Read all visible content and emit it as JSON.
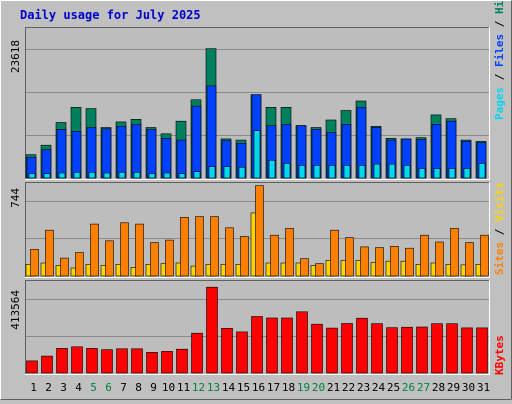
{
  "title": "Daily usage for July 2025",
  "colors": {
    "background": "#C0C0C0",
    "plot_bg": "#BDBDBD",
    "grid": "#8A8A8A",
    "title": "#0000CC",
    "hits": "#00805C",
    "files": "#0040FF",
    "pages": "#00D8F0",
    "visits": "#FFD400",
    "sites": "#FF8000",
    "kbytes": "#FF0000",
    "weekend_label": "#008040",
    "day_label": "#000000"
  },
  "chart_data": [
    {
      "type": "bar",
      "panel": "top",
      "ymax_label": "23618",
      "ylim": [
        0,
        23618
      ],
      "legend": [
        "Pages",
        "Files",
        "Hits"
      ],
      "legend_separator": " / ",
      "categories": [
        "1",
        "2",
        "3",
        "4",
        "5",
        "6",
        "7",
        "8",
        "9",
        "10",
        "11",
        "12",
        "13",
        "14",
        "15",
        "16",
        "17",
        "18",
        "19",
        "20",
        "21",
        "22",
        "23",
        "24",
        "25",
        "26",
        "27",
        "28",
        "29",
        "30",
        "31"
      ],
      "weekend_days": [
        "5",
        "6",
        "12",
        "13",
        "19",
        "20",
        "26",
        "27"
      ],
      "series": [
        {
          "name": "Hits",
          "color_key": "hits",
          "values": [
            3700,
            5200,
            8800,
            11200,
            11000,
            8000,
            8900,
            9300,
            8000,
            7000,
            9000,
            12400,
            20500,
            6200,
            6000,
            13200,
            11200,
            11200,
            8300,
            8000,
            9200,
            10700,
            12200,
            8200,
            6300,
            6200,
            6400,
            10000,
            9400,
            6000,
            5800
          ]
        },
        {
          "name": "Files",
          "color_key": "files",
          "values": [
            3300,
            4500,
            7700,
            7400,
            8000,
            7800,
            8200,
            8500,
            7700,
            6300,
            6000,
            11400,
            14600,
            5900,
            5500,
            13200,
            8300,
            8500,
            8300,
            7700,
            7200,
            8500,
            11200,
            8000,
            6000,
            6200,
            6100,
            8500,
            9000,
            5800,
            5600
          ]
        },
        {
          "name": "Pages",
          "color_key": "pages",
          "values": [
            700,
            700,
            800,
            900,
            900,
            800,
            900,
            900,
            700,
            800,
            700,
            1000,
            1800,
            1800,
            1700,
            7500,
            2800,
            2300,
            2000,
            2000,
            2000,
            2000,
            2000,
            2200,
            2200,
            2000,
            1500,
            1500,
            1500,
            1500,
            2300
          ]
        }
      ]
    },
    {
      "type": "bar",
      "panel": "middle",
      "ymax_label": "744",
      "ylim": [
        0,
        744
      ],
      "legend": [
        "Sites",
        "Visits"
      ],
      "legend_separator": " / ",
      "categories": [
        "1",
        "2",
        "3",
        "4",
        "5",
        "6",
        "7",
        "8",
        "9",
        "10",
        "11",
        "12",
        "13",
        "14",
        "15",
        "16",
        "17",
        "18",
        "19",
        "20",
        "21",
        "22",
        "23",
        "24",
        "25",
        "26",
        "27",
        "28",
        "29",
        "30",
        "31"
      ],
      "series": [
        {
          "name": "Visits",
          "color_key": "visits",
          "values": [
            95,
            105,
            85,
            65,
            95,
            85,
            95,
            70,
            95,
            100,
            105,
            80,
            95,
            95,
            95,
            510,
            105,
            105,
            105,
            85,
            125,
            125,
            125,
            110,
            120,
            120,
            95,
            105,
            95,
            90,
            95
          ]
        },
        {
          "name": "Sites",
          "color_key": "sites",
          "values": [
            215,
            370,
            145,
            190,
            420,
            285,
            430,
            420,
            270,
            290,
            475,
            480,
            480,
            390,
            320,
            730,
            330,
            385,
            140,
            100,
            370,
            310,
            235,
            230,
            240,
            225,
            330,
            275,
            385,
            270,
            330
          ]
        }
      ]
    },
    {
      "type": "bar",
      "panel": "bottom",
      "ymax_label": "413564",
      "ylim": [
        0,
        413564
      ],
      "legend": [
        "KBytes"
      ],
      "categories": [
        "1",
        "2",
        "3",
        "4",
        "5",
        "6",
        "7",
        "8",
        "9",
        "10",
        "11",
        "12",
        "13",
        "14",
        "15",
        "16",
        "17",
        "18",
        "19",
        "20",
        "21",
        "22",
        "23",
        "24",
        "25",
        "26",
        "27",
        "28",
        "29",
        "30",
        "31"
      ],
      "series": [
        {
          "name": "KBytes",
          "color_key": "kbytes",
          "values": [
            55000,
            77000,
            112000,
            119000,
            112000,
            106000,
            110000,
            110000,
            94000,
            98000,
            108000,
            181000,
            390000,
            203000,
            187000,
            257000,
            250000,
            250000,
            278000,
            222000,
            204000,
            225000,
            249000,
            224000,
            206000,
            208000,
            209000,
            224000,
            224000,
            205000,
            205000
          ]
        }
      ]
    }
  ]
}
